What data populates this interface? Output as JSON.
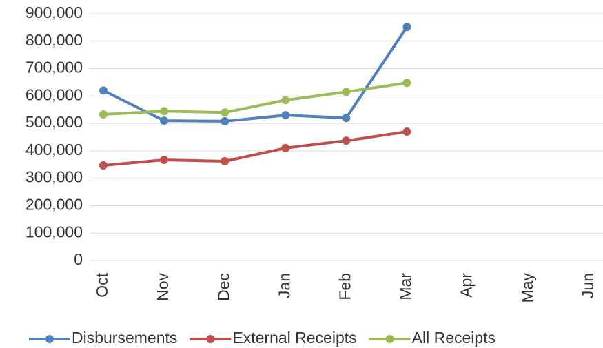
{
  "chart_data": {
    "type": "line",
    "categories": [
      "Oct",
      "Nov",
      "Dec",
      "Jan",
      "Feb",
      "Mar",
      "Apr",
      "May",
      "Jun"
    ],
    "series": [
      {
        "name": "Disbursements",
        "color": "#4f81bd",
        "values": [
          620000,
          510000,
          508000,
          530000,
          520000,
          852000,
          null,
          null,
          null
        ]
      },
      {
        "name": "External Receipts",
        "color": "#c0504d",
        "values": [
          347000,
          367000,
          362000,
          410000,
          437000,
          470000,
          null,
          null,
          null
        ]
      },
      {
        "name": "All Receipts",
        "color": "#9bbb59",
        "values": [
          533000,
          545000,
          540000,
          585000,
          615000,
          648000,
          null,
          null,
          null
        ]
      }
    ],
    "ylim": [
      0,
      900000
    ],
    "yticks": [
      0,
      {
        "value": 100000,
        "label": "100,000"
      },
      {
        "value": 200000,
        "label": "200,000"
      },
      {
        "value": 300000,
        "label": "300,000"
      },
      {
        "value": 400000,
        "label": "400,000"
      },
      {
        "value": 500000,
        "label": "500,000"
      },
      {
        "value": 600000,
        "label": "600,000"
      },
      {
        "value": 700000,
        "label": "700,000"
      },
      {
        "value": 800000,
        "label": "800,000"
      },
      {
        "value": 900000,
        "label": "900,000"
      }
    ],
    "grid": true,
    "legend": "bottom"
  }
}
